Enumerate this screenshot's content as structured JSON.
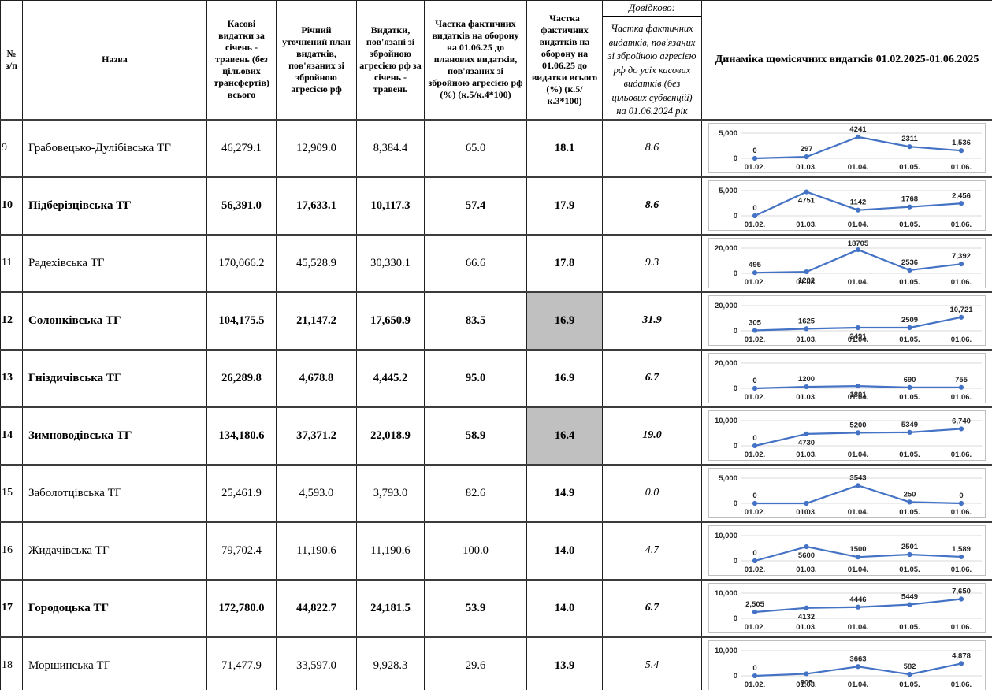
{
  "header": {
    "col_num": "№ з/п",
    "col_name": "Назва",
    "col_cash": "Касові видатки за січень - травень (без цільових трансфертів) всього",
    "col_plan": "Річний уточнений план видатків, пов'язаних зі збройною агресією рф",
    "col_expense": "Видатки, пов'язані зі збройною агресією рф за січень - травень",
    "col_share_plan": "Частка фактичних видатків на оборону на 01.06.25 до планових видатків, пов'язаних зі збройною агресією рф (%) (к.5/к.4*100)",
    "col_share_total": "Частка фактичних видатків на оборону на 01.06.25 до видатки всього (%) (к.5/к.3*100)",
    "ref_title": "Довідково:",
    "ref_note": "Частка фактичних видатків, пов'язаних зі збройною агресією рф до усіх касових видатків (без цільових субвенцій) на 01.06.2024 рік",
    "col_dynamics": "Динаміка щомісячних видатків 01.02.2025-01.06.2025"
  },
  "colors": {
    "line": "#4472C4",
    "grid": "#d9d9d9",
    "highlight": "#c0c0c0"
  },
  "x_labels": [
    "01.02.",
    "01.03.",
    "01.04.",
    "01.05.",
    "01.06."
  ],
  "rows": [
    {
      "num": "9",
      "name": "Грабовецько-Дулібівська ТГ",
      "cash": "46,279.1",
      "plan": "12,909.0",
      "expense": "8,384.4",
      "share_plan": "65.0",
      "share_total": "18.1",
      "ref": "8.6",
      "bold": false,
      "highlight": false
    },
    {
      "num": "10",
      "name": "Підберізцівська ТГ",
      "cash": "56,391.0",
      "plan": "17,633.1",
      "expense": "10,117.3",
      "share_plan": "57.4",
      "share_total": "17.9",
      "ref": "8.6",
      "bold": true,
      "highlight": false
    },
    {
      "num": "11",
      "name": "Радехівська ТГ",
      "cash": "170,066.2",
      "plan": "45,528.9",
      "expense": "30,330.1",
      "share_plan": "66.6",
      "share_total": "17.8",
      "ref": "9.3",
      "bold": false,
      "highlight": false
    },
    {
      "num": "12",
      "name": "Солонківська ТГ",
      "cash": "104,175.5",
      "plan": "21,147.2",
      "expense": "17,650.9",
      "share_plan": "83.5",
      "share_total": "16.9",
      "ref": "31.9",
      "bold": true,
      "highlight": true
    },
    {
      "num": "13",
      "name": "Гніздичівська ТГ",
      "cash": "26,289.8",
      "plan": "4,678.8",
      "expense": "4,445.2",
      "share_plan": "95.0",
      "share_total": "16.9",
      "ref": "6.7",
      "bold": true,
      "highlight": false
    },
    {
      "num": "14",
      "name": "Зимноводівська ТГ",
      "cash": "134,180.6",
      "plan": "37,371.2",
      "expense": "22,018.9",
      "share_plan": "58.9",
      "share_total": "16.4",
      "ref": "19.0",
      "bold": true,
      "highlight": true
    },
    {
      "num": "15",
      "name": "Заболотцівська ТГ",
      "cash": "25,461.9",
      "plan": "4,593.0",
      "expense": "3,793.0",
      "share_plan": "82.6",
      "share_total": "14.9",
      "ref": "0.0",
      "bold": false,
      "highlight": false
    },
    {
      "num": "16",
      "name": "Жидачівська ТГ",
      "cash": "79,702.4",
      "plan": "11,190.6",
      "expense": "11,190.6",
      "share_plan": "100.0",
      "share_total": "14.0",
      "ref": "4.7",
      "bold": false,
      "highlight": false
    },
    {
      "num": "17",
      "name": "Городоцька ТГ",
      "cash": "172,780.0",
      "plan": "44,822.7",
      "expense": "24,181.5",
      "share_plan": "53.9",
      "share_total": "14.0",
      "ref": "6.7",
      "bold": true,
      "highlight": false
    },
    {
      "num": "18",
      "name": "Моршинська ТГ",
      "cash": "71,477.9",
      "plan": "33,597.0",
      "expense": "9,928.3",
      "share_plan": "29.6",
      "share_total": "13.9",
      "ref": "5.4",
      "bold": false,
      "highlight": false
    }
  ],
  "chart_data": [
    {
      "type": "line",
      "title": "Грабовецько-Дулібівська ТГ",
      "categories": [
        "01.02.",
        "01.03.",
        "01.04.",
        "01.05.",
        "01.06."
      ],
      "values": [
        0,
        297,
        4241,
        2311,
        1536
      ],
      "value_labels": [
        "0",
        "297",
        "4241",
        "2311",
        "1,536"
      ],
      "ylim": [
        0,
        5000
      ],
      "ymax_label": "5,000",
      "below_label_indices": []
    },
    {
      "type": "line",
      "title": "Підберізцівська ТГ",
      "categories": [
        "01.02.",
        "01.03.",
        "01.04.",
        "01.05.",
        "01.06."
      ],
      "values": [
        0,
        4751,
        1142,
        1768,
        2456
      ],
      "value_labels": [
        "0",
        "4751",
        "1142",
        "1768",
        "2,456"
      ],
      "ylim": [
        0,
        5000
      ],
      "ymax_label": "5,000",
      "below_label_indices": [
        1
      ]
    },
    {
      "type": "line",
      "title": "Радехівська ТГ",
      "categories": [
        "01.02.",
        "01.03.",
        "01.04.",
        "01.05.",
        "01.06."
      ],
      "values": [
        495,
        1202,
        18705,
        2536,
        7392
      ],
      "value_labels": [
        "495",
        "1202",
        "18705",
        "2536",
        "7,392"
      ],
      "ylim": [
        0,
        20000
      ],
      "ymax_label": "20,000",
      "below_label_indices": [
        1
      ]
    },
    {
      "type": "line",
      "title": "Солонківська ТГ",
      "categories": [
        "01.02.",
        "01.03.",
        "01.04.",
        "01.05.",
        "01.06."
      ],
      "values": [
        305,
        1625,
        2491,
        2509,
        10721
      ],
      "value_labels": [
        "305",
        "1625",
        "2491",
        "2509",
        "10,721"
      ],
      "ylim": [
        0,
        20000
      ],
      "ymax_label": "20,000",
      "below_label_indices": [
        2
      ]
    },
    {
      "type": "line",
      "title": "Гніздичівська ТГ",
      "categories": [
        "01.02.",
        "01.03.",
        "01.04.",
        "01.05.",
        "01.06."
      ],
      "values": [
        0,
        1200,
        1801,
        690,
        755
      ],
      "value_labels": [
        "0",
        "1200",
        "1801",
        "690",
        "755"
      ],
      "ylim": [
        0,
        20000
      ],
      "ymax_label": "20,000",
      "below_label_indices": [
        2
      ]
    },
    {
      "type": "line",
      "title": "Зимноводівська ТГ",
      "categories": [
        "01.02.",
        "01.03.",
        "01.04.",
        "01.05.",
        "01.06."
      ],
      "values": [
        0,
        4730,
        5200,
        5349,
        6740
      ],
      "value_labels": [
        "0",
        "4730",
        "5200",
        "5349",
        "6,740"
      ],
      "ylim": [
        0,
        10000
      ],
      "ymax_label": "10,000",
      "below_label_indices": [
        1
      ]
    },
    {
      "type": "line",
      "title": "Заболотцівська ТГ",
      "categories": [
        "01.02.",
        "01.03.",
        "01.04.",
        "01.05.",
        "01.06."
      ],
      "values": [
        0,
        0,
        3543,
        250,
        0
      ],
      "value_labels": [
        "0",
        "0",
        "3543",
        "250",
        "0"
      ],
      "ylim": [
        0,
        5000
      ],
      "ymax_label": "5,000",
      "below_label_indices": [
        1
      ]
    },
    {
      "type": "line",
      "title": "Жидачівська ТГ",
      "categories": [
        "01.02.",
        "01.03.",
        "01.04.",
        "01.05.",
        "01.06."
      ],
      "values": [
        0,
        5600,
        1500,
        2501,
        1589
      ],
      "value_labels": [
        "0",
        "5600",
        "1500",
        "2501",
        "1,589"
      ],
      "ylim": [
        0,
        10000
      ],
      "ymax_label": "10,000",
      "below_label_indices": [
        1
      ]
    },
    {
      "type": "line",
      "title": "Городоцька ТГ",
      "categories": [
        "01.02.",
        "01.03.",
        "01.04.",
        "01.05.",
        "01.06."
      ],
      "values": [
        2505,
        4132,
        4446,
        5449,
        7650
      ],
      "value_labels": [
        "2,505",
        "4132",
        "4446",
        "5449",
        "7,650"
      ],
      "ylim": [
        0,
        10000
      ],
      "ymax_label": "10,000",
      "below_label_indices": [
        1
      ]
    },
    {
      "type": "line",
      "title": "Моршинська ТГ",
      "categories": [
        "01.02.",
        "01.03.",
        "01.04.",
        "01.05.",
        "01.06."
      ],
      "values": [
        0,
        805,
        3663,
        582,
        4878
      ],
      "value_labels": [
        "0",
        "805",
        "3663",
        "582",
        "4,878"
      ],
      "ylim": [
        0,
        10000
      ],
      "ymax_label": "10,000",
      "below_label_indices": [
        1
      ]
    }
  ]
}
